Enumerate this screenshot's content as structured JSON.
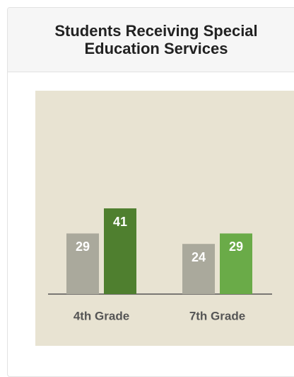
{
  "chart_data": {
    "type": "bar",
    "title": "Students Receiving Special Education Services",
    "categories": [
      "4th Grade",
      "7th Grade"
    ],
    "series": [
      {
        "colors": [
          "#aaa99c",
          "#aaa99c"
        ],
        "values": [
          29,
          24
        ]
      },
      {
        "colors": [
          "#4f7f2f",
          "#6aab48"
        ],
        "values": [
          41,
          29
        ]
      }
    ]
  }
}
